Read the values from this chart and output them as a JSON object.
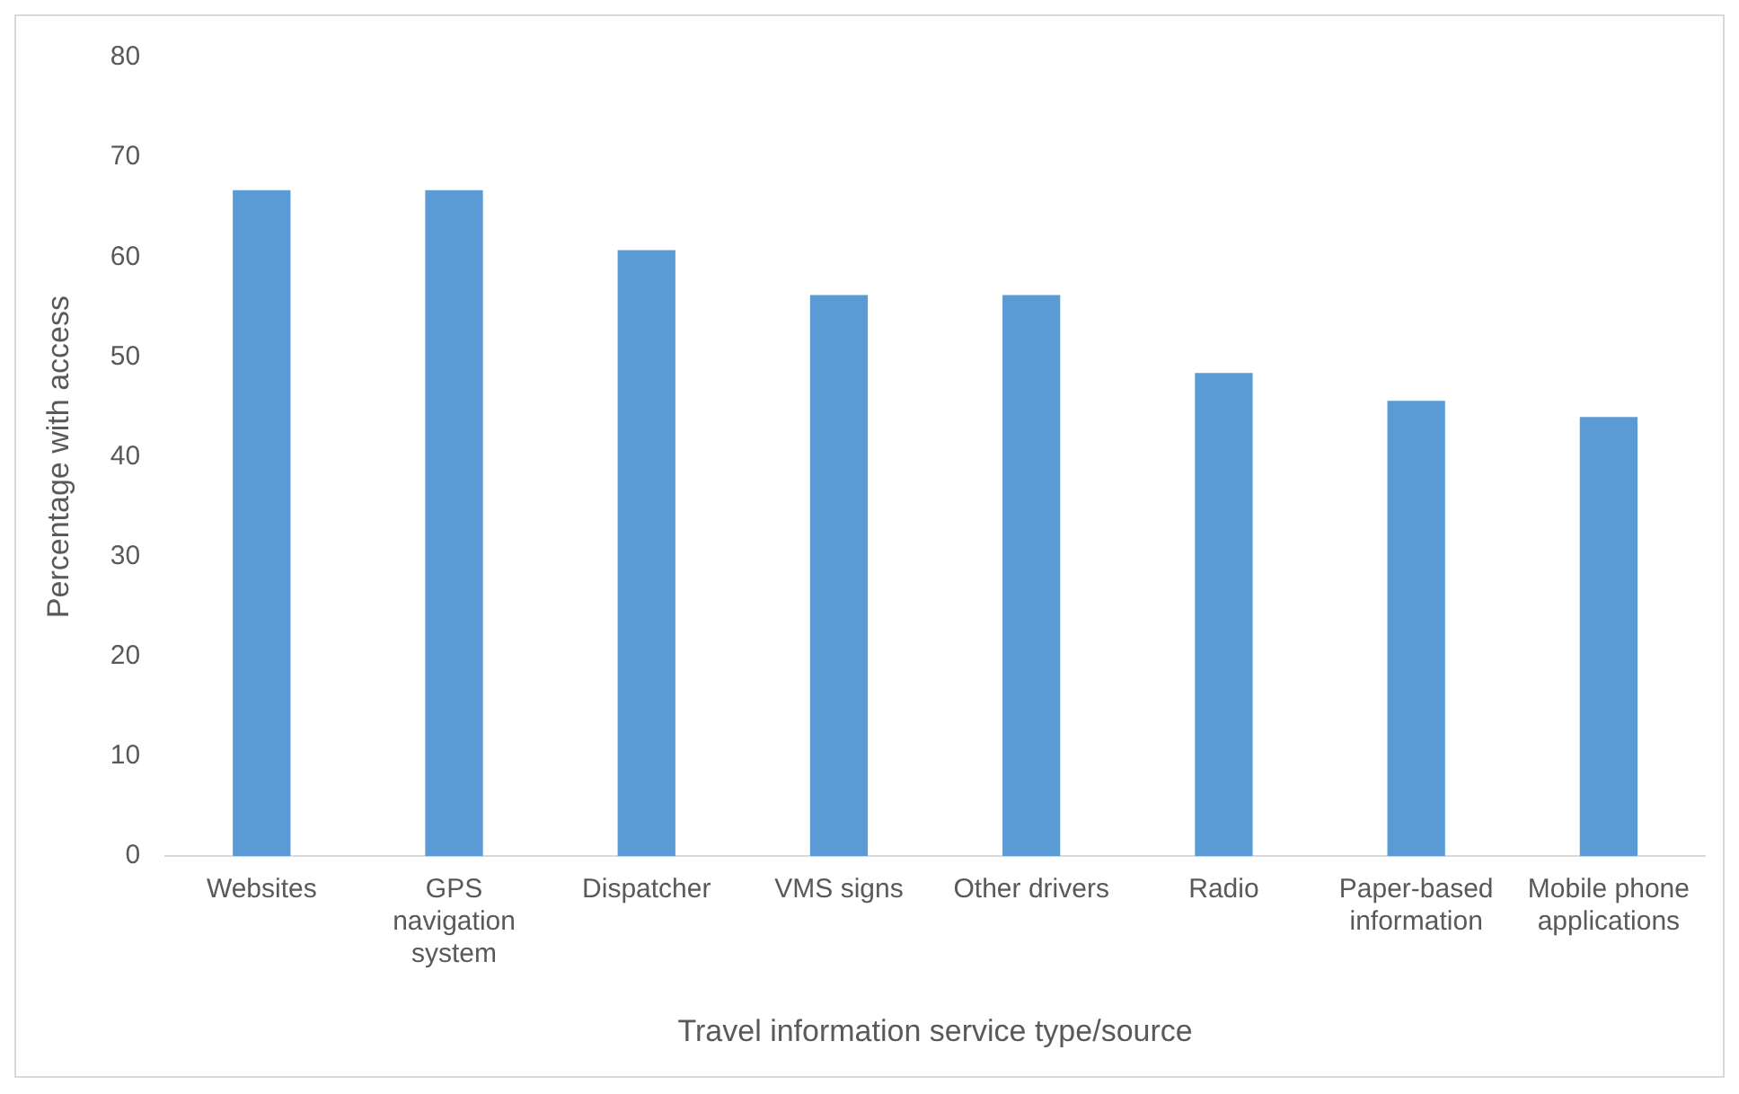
{
  "chart_data": {
    "type": "bar",
    "xlabel": "Travel information service type/source",
    "ylabel": "Percentage with access",
    "categories": [
      "Websites",
      "GPS navigation system",
      "Dispatcher",
      "VMS signs",
      "Other drivers",
      "Radio",
      "Paper-based information",
      "Mobile phone applications"
    ],
    "values": [
      66.7,
      66.7,
      60.7,
      56.2,
      56.2,
      48.4,
      45.6,
      44.0
    ],
    "color": "#5b9bd5",
    "ylim": [
      0,
      80
    ],
    "yticks": [
      0,
      10,
      20,
      30,
      40,
      50,
      60,
      70,
      80
    ],
    "grid": false,
    "legend": false
  }
}
